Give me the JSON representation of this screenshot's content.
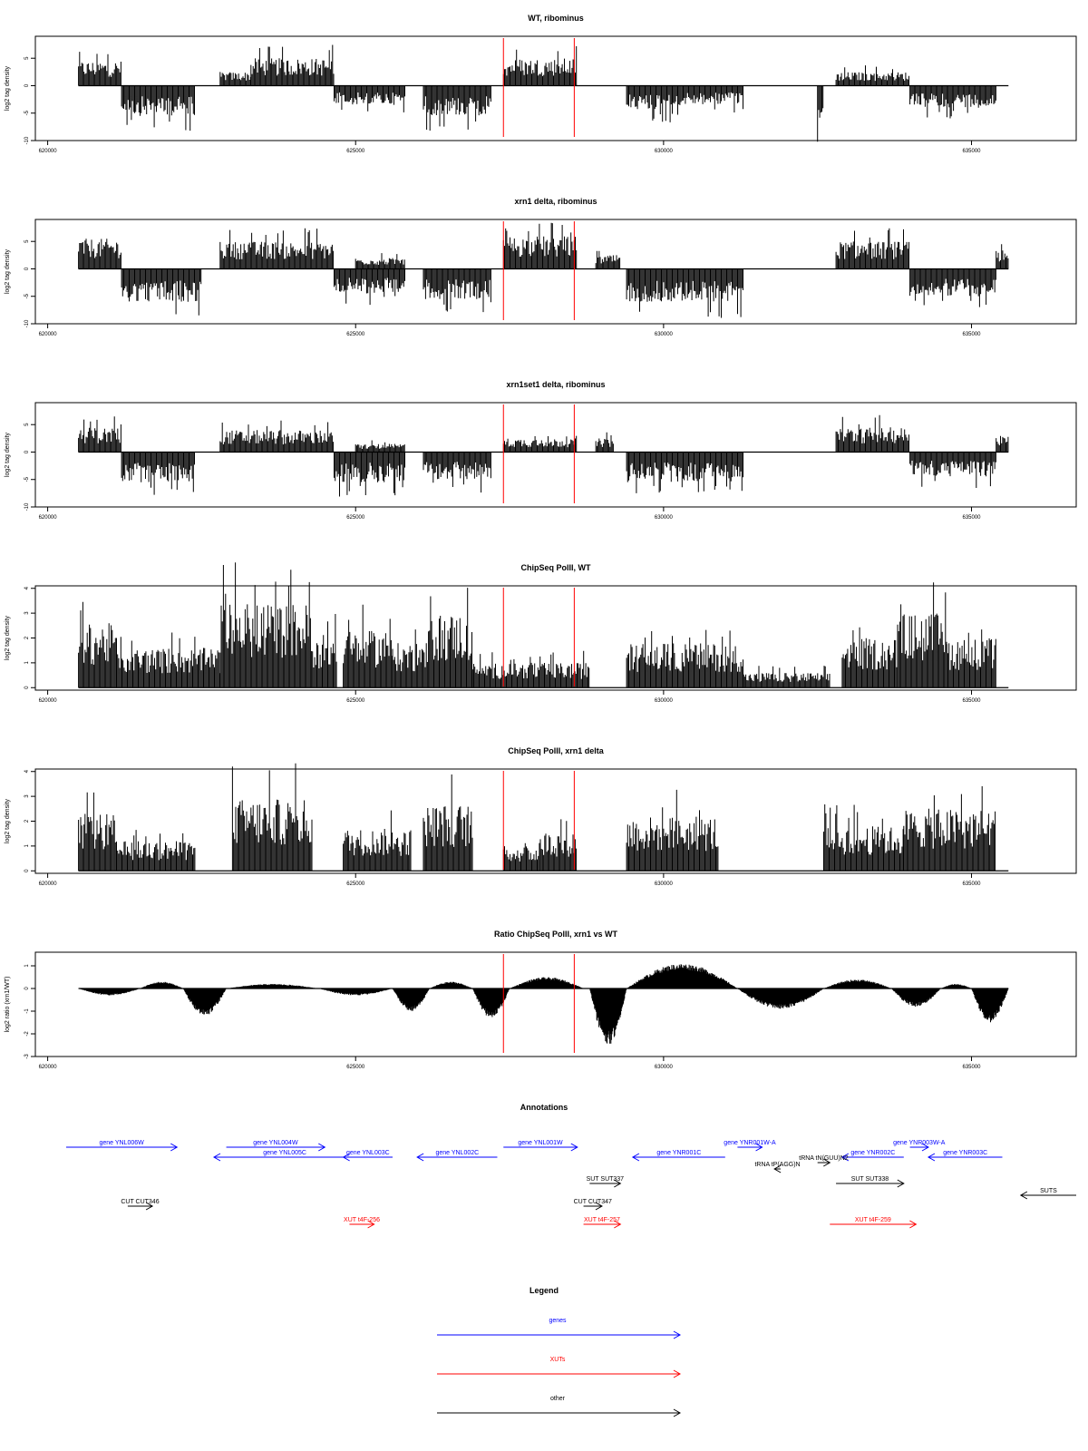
{
  "colors": {
    "trace": "#000000",
    "marker": "#ff0000",
    "gene": "#0000ff",
    "xut": "#ff0000",
    "other": "#000000",
    "frame": "#000000"
  },
  "chart_data": [
    {
      "type": "area",
      "title": "WT, ribominus",
      "ylabel": "log2 tag density",
      "xlim": [
        619800,
        636700
      ],
      "ylim": [
        -10,
        9
      ],
      "yticks": [
        -10,
        -5,
        0,
        5
      ],
      "xticks": [
        620000,
        625000,
        630000,
        635000
      ],
      "markers": [
        627400,
        628550
      ],
      "segments": [
        {
          "x0": 620500,
          "x1": 621200,
          "sign": 1,
          "level": 4.5
        },
        {
          "x0": 621200,
          "x1": 622400,
          "sign": -1,
          "level": 5.5
        },
        {
          "x0": 622800,
          "x1": 623300,
          "sign": 1,
          "level": 2.5
        },
        {
          "x0": 623300,
          "x1": 624650,
          "sign": 1,
          "level": 5.0
        },
        {
          "x0": 624650,
          "x1": 625800,
          "sign": -1,
          "level": 3.5
        },
        {
          "x0": 626100,
          "x1": 627200,
          "sign": -1,
          "level": 5.5
        },
        {
          "x0": 627400,
          "x1": 628600,
          "sign": 1,
          "level": 5.0
        },
        {
          "x0": 629400,
          "x1": 630300,
          "sign": -1,
          "level": 4.5
        },
        {
          "x0": 630300,
          "x1": 631300,
          "sign": -1,
          "level": 3.5
        },
        {
          "x0": 632500,
          "x1": 632600,
          "sign": -1,
          "level": 7.0
        },
        {
          "x0": 632800,
          "x1": 634000,
          "sign": 1,
          "level": 2.5
        },
        {
          "x0": 634000,
          "x1": 635400,
          "sign": -1,
          "level": 4.0
        }
      ]
    },
    {
      "type": "area",
      "title": "xrn1 delta, ribominus",
      "ylabel": "log2 tag density",
      "xlim": [
        619800,
        636700
      ],
      "ylim": [
        -10,
        9
      ],
      "yticks": [
        -10,
        -5,
        0,
        5
      ],
      "xticks": [
        620000,
        625000,
        630000,
        635000
      ],
      "markers": [
        627400,
        628550
      ],
      "segments": [
        {
          "x0": 620500,
          "x1": 621200,
          "sign": 1,
          "level": 5.5
        },
        {
          "x0": 621200,
          "x1": 622500,
          "sign": -1,
          "level": 6.0
        },
        {
          "x0": 622800,
          "x1": 624650,
          "sign": 1,
          "level": 5.0
        },
        {
          "x0": 624650,
          "x1": 625800,
          "sign": -1,
          "level": 4.5
        },
        {
          "x0": 625000,
          "x1": 625800,
          "sign": 1,
          "level": 2.0
        },
        {
          "x0": 626100,
          "x1": 627200,
          "sign": -1,
          "level": 5.5
        },
        {
          "x0": 627400,
          "x1": 628600,
          "sign": 1,
          "level": 6.0
        },
        {
          "x0": 628900,
          "x1": 629300,
          "sign": 1,
          "level": 2.5
        },
        {
          "x0": 629400,
          "x1": 631300,
          "sign": -1,
          "level": 6.0
        },
        {
          "x0": 632800,
          "x1": 634000,
          "sign": 1,
          "level": 5.0
        },
        {
          "x0": 634000,
          "x1": 635400,
          "sign": -1,
          "level": 5.0
        },
        {
          "x0": 635400,
          "x1": 635600,
          "sign": 1,
          "level": 3.5
        }
      ]
    },
    {
      "type": "area",
      "title": "xrn1set1 delta, ribominus",
      "ylabel": "log2 tag density",
      "xlim": [
        619800,
        636700
      ],
      "ylim": [
        -10,
        9
      ],
      "yticks": [
        -10,
        -5,
        0,
        5
      ],
      "xticks": [
        620000,
        625000,
        630000,
        635000
      ],
      "markers": [
        627400,
        628550
      ],
      "segments": [
        {
          "x0": 620500,
          "x1": 621200,
          "sign": 1,
          "level": 4.5
        },
        {
          "x0": 621200,
          "x1": 622400,
          "sign": -1,
          "level": 5.5
        },
        {
          "x0": 622800,
          "x1": 624650,
          "sign": 1,
          "level": 4.0
        },
        {
          "x0": 624650,
          "x1": 625800,
          "sign": -1,
          "level": 5.5
        },
        {
          "x0": 625000,
          "x1": 625800,
          "sign": 1,
          "level": 1.5
        },
        {
          "x0": 626100,
          "x1": 627200,
          "sign": -1,
          "level": 5.0
        },
        {
          "x0": 627400,
          "x1": 628600,
          "sign": 1,
          "level": 2.5
        },
        {
          "x0": 628900,
          "x1": 629200,
          "sign": 1,
          "level": 2.5
        },
        {
          "x0": 629400,
          "x1": 631300,
          "sign": -1,
          "level": 5.5
        },
        {
          "x0": 632800,
          "x1": 634000,
          "sign": 1,
          "level": 4.5
        },
        {
          "x0": 634000,
          "x1": 635400,
          "sign": -1,
          "level": 4.5
        },
        {
          "x0": 635400,
          "x1": 635600,
          "sign": 1,
          "level": 3.0
        }
      ]
    },
    {
      "type": "area",
      "title": "ChipSeq PolII, WT",
      "ylabel": "log2 tag density",
      "xlim": [
        619800,
        636700
      ],
      "ylim": [
        -0.1,
        4.1
      ],
      "yticks": [
        0,
        1,
        2,
        3,
        4
      ],
      "xticks": [
        620000,
        625000,
        630000,
        635000
      ],
      "markers": [
        627400,
        628550
      ],
      "segments": [
        {
          "x0": 620500,
          "x1": 621100,
          "sign": 1,
          "level": 2.6
        },
        {
          "x0": 621100,
          "x1": 622800,
          "sign": 1,
          "level": 1.6
        },
        {
          "x0": 622800,
          "x1": 624300,
          "sign": 1,
          "level": 3.4
        },
        {
          "x0": 624300,
          "x1": 624700,
          "sign": 1,
          "level": 2.2
        },
        {
          "x0": 624800,
          "x1": 625600,
          "sign": 1,
          "level": 2.3
        },
        {
          "x0": 625600,
          "x1": 626200,
          "sign": 1,
          "level": 1.8
        },
        {
          "x0": 626200,
          "x1": 626900,
          "sign": 1,
          "level": 3.0
        },
        {
          "x0": 626900,
          "x1": 628800,
          "sign": 1,
          "level": 1.0
        },
        {
          "x0": 629400,
          "x1": 631300,
          "sign": 1,
          "level": 1.8
        },
        {
          "x0": 631300,
          "x1": 632700,
          "sign": 1,
          "level": 0.6
        },
        {
          "x0": 632900,
          "x1": 633800,
          "sign": 1,
          "level": 2.0
        },
        {
          "x0": 633800,
          "x1": 634600,
          "sign": 1,
          "level": 3.0
        },
        {
          "x0": 634600,
          "x1": 635400,
          "sign": 1,
          "level": 2.0
        }
      ]
    },
    {
      "type": "area",
      "title": "ChipSeq PolII, xrn1 delta",
      "ylabel": "log2 tag density",
      "xlim": [
        619800,
        636700
      ],
      "ylim": [
        -0.1,
        4.1
      ],
      "yticks": [
        0,
        1,
        2,
        3,
        4
      ],
      "xticks": [
        620000,
        625000,
        630000,
        635000
      ],
      "markers": [
        627400,
        628550
      ],
      "segments": [
        {
          "x0": 620500,
          "x1": 621100,
          "sign": 1,
          "level": 2.3
        },
        {
          "x0": 621100,
          "x1": 622400,
          "sign": 1,
          "level": 1.2
        },
        {
          "x0": 623000,
          "x1": 624300,
          "sign": 1,
          "level": 2.9
        },
        {
          "x0": 624800,
          "x1": 625900,
          "sign": 1,
          "level": 1.7
        },
        {
          "x0": 626100,
          "x1": 626900,
          "sign": 1,
          "level": 2.7
        },
        {
          "x0": 627400,
          "x1": 628000,
          "sign": 1,
          "level": 1.0
        },
        {
          "x0": 628000,
          "x1": 628600,
          "sign": 1,
          "level": 1.6
        },
        {
          "x0": 629400,
          "x1": 630900,
          "sign": 1,
          "level": 2.2
        },
        {
          "x0": 632600,
          "x1": 633900,
          "sign": 1,
          "level": 1.8
        },
        {
          "x0": 633900,
          "x1": 635400,
          "sign": 1,
          "level": 2.5
        }
      ]
    },
    {
      "type": "area",
      "title": "Ratio ChipSeq PolII, xrn1 vs WT",
      "ylabel": "log2 ratio (xrn1/WT)",
      "xlim": [
        619800,
        636700
      ],
      "ylim": [
        -3,
        1.6
      ],
      "yticks": [
        -3,
        -2,
        -1,
        0,
        1
      ],
      "xticks": [
        620000,
        625000,
        630000,
        635000
      ],
      "markers": [
        627400,
        628550
      ],
      "segments": [
        {
          "x0": 620500,
          "x1": 621500,
          "sign": -1,
          "level": 0.3
        },
        {
          "x0": 621500,
          "x1": 622200,
          "sign": 1,
          "level": 0.3
        },
        {
          "x0": 622200,
          "x1": 622900,
          "sign": -1,
          "level": 1.2
        },
        {
          "x0": 622900,
          "x1": 624400,
          "sign": 1,
          "level": 0.2
        },
        {
          "x0": 624400,
          "x1": 625600,
          "sign": -1,
          "level": 0.3
        },
        {
          "x0": 625600,
          "x1": 626200,
          "sign": -1,
          "level": 1.0
        },
        {
          "x0": 626200,
          "x1": 626900,
          "sign": 1,
          "level": 0.3
        },
        {
          "x0": 626900,
          "x1": 627500,
          "sign": -1,
          "level": 1.3
        },
        {
          "x0": 627500,
          "x1": 628700,
          "sign": 1,
          "level": 0.5
        },
        {
          "x0": 628800,
          "x1": 629400,
          "sign": -1,
          "level": 2.5
        },
        {
          "x0": 629400,
          "x1": 631200,
          "sign": 1,
          "level": 1.1
        },
        {
          "x0": 631200,
          "x1": 632600,
          "sign": -1,
          "level": 0.9
        },
        {
          "x0": 632600,
          "x1": 633700,
          "sign": 1,
          "level": 0.4
        },
        {
          "x0": 633700,
          "x1": 634500,
          "sign": -1,
          "level": 0.8
        },
        {
          "x0": 634500,
          "x1": 635000,
          "sign": 1,
          "level": 0.2
        },
        {
          "x0": 635000,
          "x1": 635600,
          "sign": -1,
          "level": 1.5
        }
      ]
    }
  ],
  "annotations": {
    "title": "Annotations",
    "items": [
      {
        "label": "gene YNL006W",
        "category": "gene",
        "dir": "right",
        "x0": 620300,
        "x1": 622100,
        "row": 0
      },
      {
        "label": "gene YNL005C",
        "category": "gene",
        "dir": "left",
        "x0": 622700,
        "x1": 625000,
        "row": 1
      },
      {
        "label": "gene YNL004W",
        "category": "gene",
        "dir": "right",
        "x0": 622900,
        "x1": 624500,
        "row": 0
      },
      {
        "label": "gene YNL003C",
        "category": "gene",
        "dir": "left",
        "x0": 624800,
        "x1": 625600,
        "row": 1
      },
      {
        "label": "gene YNL002C",
        "category": "gene",
        "dir": "left",
        "x0": 626000,
        "x1": 627300,
        "row": 1
      },
      {
        "label": "gene YNL001W",
        "category": "gene",
        "dir": "right",
        "x0": 627400,
        "x1": 628600,
        "row": 0
      },
      {
        "label": "gene YNR001C",
        "category": "gene",
        "dir": "left",
        "x0": 629500,
        "x1": 631000,
        "row": 1
      },
      {
        "label": "gene YNR001W-A",
        "category": "gene",
        "dir": "right",
        "x0": 631200,
        "x1": 631600,
        "row": 0
      },
      {
        "label": "gene YNR002C",
        "category": "gene",
        "dir": "left",
        "x0": 632900,
        "x1": 633900,
        "row": 1
      },
      {
        "label": "gene YNR003W-A",
        "category": "gene",
        "dir": "right",
        "x0": 634000,
        "x1": 634300,
        "row": 0
      },
      {
        "label": "gene YNR003C",
        "category": "gene",
        "dir": "left",
        "x0": 634300,
        "x1": 635500,
        "row": 1
      },
      {
        "label": "tRNA tN(GUU)N2",
        "category": "other",
        "dir": "right",
        "x0": 632500,
        "x1": 632700,
        "row": 2
      },
      {
        "label": "tRNA tP(AGG)N",
        "category": "other",
        "dir": "left",
        "x0": 631800,
        "x1": 631900,
        "row": 3
      },
      {
        "label": "SUT SUT337",
        "category": "other",
        "dir": "right",
        "x0": 628800,
        "x1": 629300,
        "row": 4
      },
      {
        "label": "SUT SUT338",
        "category": "other",
        "dir": "right",
        "x0": 632800,
        "x1": 633900,
        "row": 4
      },
      {
        "label": "SUTS",
        "category": "other",
        "dir": "left",
        "x0": 635800,
        "x1": 636700,
        "row": 5
      },
      {
        "label": "CUT CUT346",
        "category": "other",
        "dir": "right",
        "x0": 621300,
        "x1": 621700,
        "row": 6
      },
      {
        "label": "CUT CUT347",
        "category": "other",
        "dir": "right",
        "x0": 628700,
        "x1": 629000,
        "row": 6
      },
      {
        "label": "XUT t4F-256",
        "category": "xut",
        "dir": "right",
        "x0": 624900,
        "x1": 625300,
        "row": 7
      },
      {
        "label": "XUT t4F-257",
        "category": "xut",
        "dir": "right",
        "x0": 628700,
        "x1": 629300,
        "row": 7
      },
      {
        "label": "XUT t4F-259",
        "category": "xut",
        "dir": "right",
        "x0": 632700,
        "x1": 634100,
        "row": 7
      }
    ]
  },
  "legend": {
    "title": "Legend",
    "items": [
      {
        "label": "genes",
        "category": "gene"
      },
      {
        "label": "XUTs",
        "category": "xut"
      },
      {
        "label": "other",
        "category": "other"
      }
    ]
  }
}
